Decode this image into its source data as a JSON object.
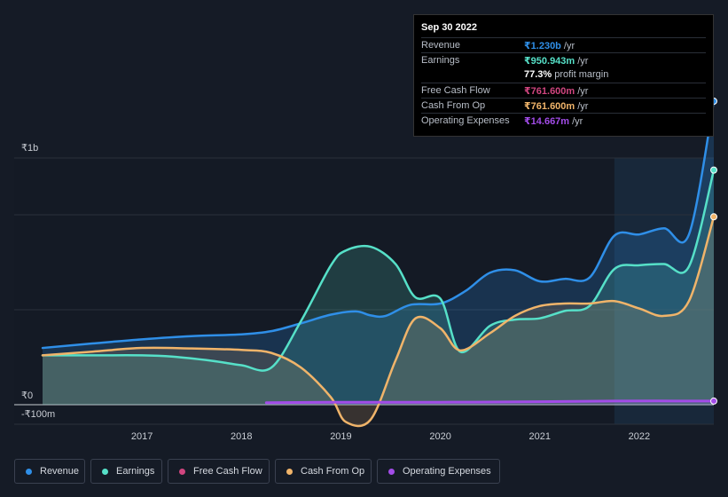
{
  "chart_data": {
    "type": "area",
    "currency_note": "INR",
    "y_ticks": [
      {
        "value": 1000,
        "label": "₹1b"
      },
      {
        "value": 0,
        "label": "₹0"
      },
      {
        "value": -100,
        "label": "-₹100m"
      }
    ],
    "ylim": [
      -100,
      1000
    ],
    "x_ticks": [
      "2017",
      "2018",
      "2019",
      "2020",
      "2021",
      "2022"
    ],
    "xlim": [
      2016.0,
      2022.75
    ],
    "highlight_from": 2021.75,
    "series": [
      {
        "name": "Revenue",
        "color": "#2f8fe8",
        "points": [
          [
            2016.0,
            230
          ],
          [
            2016.5,
            248
          ],
          [
            2017.0,
            265
          ],
          [
            2017.5,
            278
          ],
          [
            2018.0,
            285
          ],
          [
            2018.3,
            298
          ],
          [
            2018.6,
            330
          ],
          [
            2018.9,
            365
          ],
          [
            2019.15,
            378
          ],
          [
            2019.3,
            362
          ],
          [
            2019.45,
            360
          ],
          [
            2019.7,
            405
          ],
          [
            2020.0,
            410
          ],
          [
            2020.25,
            460
          ],
          [
            2020.5,
            535
          ],
          [
            2020.75,
            545
          ],
          [
            2021.0,
            500
          ],
          [
            2021.25,
            510
          ],
          [
            2021.5,
            515
          ],
          [
            2021.75,
            685
          ],
          [
            2022.0,
            690
          ],
          [
            2022.25,
            715
          ],
          [
            2022.5,
            690
          ],
          [
            2022.75,
            1230
          ]
        ]
      },
      {
        "name": "Earnings",
        "color": "#56e0c8",
        "points": [
          [
            2016.0,
            200
          ],
          [
            2016.5,
            200
          ],
          [
            2017.0,
            200
          ],
          [
            2017.3,
            195
          ],
          [
            2017.7,
            178
          ],
          [
            2018.0,
            160
          ],
          [
            2018.3,
            150
          ],
          [
            2018.6,
            340
          ],
          [
            2018.9,
            565
          ],
          [
            2019.05,
            625
          ],
          [
            2019.3,
            640
          ],
          [
            2019.55,
            570
          ],
          [
            2019.75,
            435
          ],
          [
            2020.0,
            430
          ],
          [
            2020.2,
            215
          ],
          [
            2020.5,
            320
          ],
          [
            2020.75,
            345
          ],
          [
            2021.0,
            350
          ],
          [
            2021.25,
            380
          ],
          [
            2021.5,
            400
          ],
          [
            2021.75,
            550
          ],
          [
            2022.0,
            565
          ],
          [
            2022.25,
            570
          ],
          [
            2022.5,
            560
          ],
          [
            2022.75,
            950.943
          ]
        ]
      },
      {
        "name": "Free Cash Flow",
        "color": "#d0457f",
        "points": []
      },
      {
        "name": "Cash From Op",
        "color": "#f0b46a",
        "points": [
          [
            2016.0,
            200
          ],
          [
            2016.5,
            215
          ],
          [
            2017.0,
            230
          ],
          [
            2017.5,
            228
          ],
          [
            2018.0,
            222
          ],
          [
            2018.3,
            210
          ],
          [
            2018.6,
            150
          ],
          [
            2018.9,
            30
          ],
          [
            2019.05,
            -70
          ],
          [
            2019.3,
            -60
          ],
          [
            2019.55,
            180
          ],
          [
            2019.75,
            350
          ],
          [
            2020.0,
            310
          ],
          [
            2020.2,
            220
          ],
          [
            2020.5,
            290
          ],
          [
            2020.75,
            360
          ],
          [
            2021.0,
            400
          ],
          [
            2021.25,
            410
          ],
          [
            2021.5,
            410
          ],
          [
            2021.75,
            420
          ],
          [
            2022.0,
            390
          ],
          [
            2022.25,
            360
          ],
          [
            2022.5,
            420
          ],
          [
            2022.75,
            761.6
          ]
        ]
      },
      {
        "name": "Operating Expenses",
        "color": "#a24ce8",
        "points": [
          [
            2018.25,
            8
          ],
          [
            2019.0,
            10
          ],
          [
            2020.0,
            10
          ],
          [
            2021.0,
            12
          ],
          [
            2021.75,
            15
          ],
          [
            2022.75,
            14.667
          ]
        ]
      }
    ]
  },
  "tooltip": {
    "date": "Sep 30 2022",
    "rows": [
      {
        "label": "Revenue",
        "value": "₹1.230b",
        "unit": "/yr",
        "color": "#2f8fe8"
      },
      {
        "label": "Earnings",
        "value": "₹950.943m",
        "unit": "/yr",
        "color": "#56e0c8"
      },
      {
        "label": "",
        "value": "77.3%",
        "unit": "profit margin",
        "color": "#ffffff"
      },
      {
        "label": "Free Cash Flow",
        "value": "₹761.600m",
        "unit": "/yr",
        "color": "#d0457f"
      },
      {
        "label": "Cash From Op",
        "value": "₹761.600m",
        "unit": "/yr",
        "color": "#f0b46a"
      },
      {
        "label": "Operating Expenses",
        "value": "₹14.667m",
        "unit": "/yr",
        "color": "#a24ce8"
      }
    ]
  },
  "legend": [
    {
      "label": "Revenue",
      "color": "#2f8fe8"
    },
    {
      "label": "Earnings",
      "color": "#56e0c8"
    },
    {
      "label": "Free Cash Flow",
      "color": "#d0457f"
    },
    {
      "label": "Cash From Op",
      "color": "#f0b46a"
    },
    {
      "label": "Operating Expenses",
      "color": "#a24ce8"
    }
  ]
}
